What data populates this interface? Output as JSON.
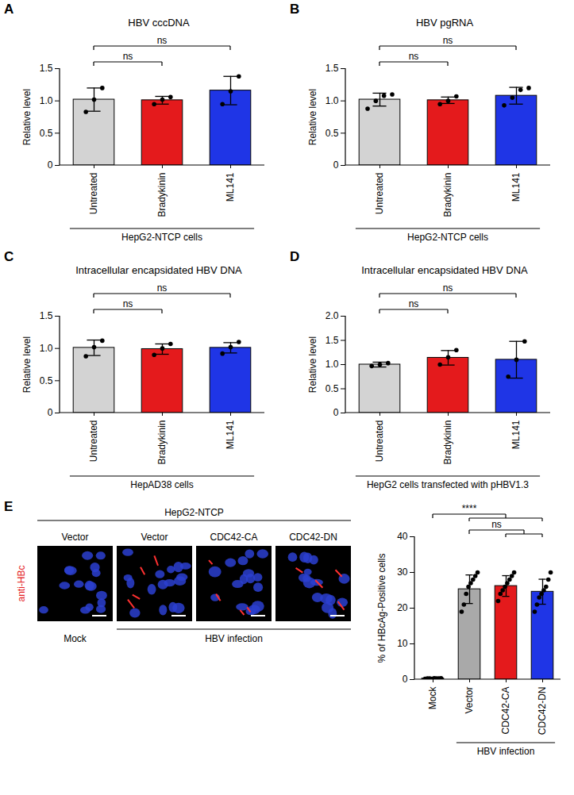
{
  "chart_data": [
    {
      "type": "bar",
      "panel": "A",
      "title": "HBV cccDNA",
      "y_label": "Relative level",
      "categories": [
        "Untreated",
        "Bradykinin",
        "ML141"
      ],
      "values": [
        1.02,
        1.01,
        1.16
      ],
      "errors": [
        0.18,
        0.06,
        0.22
      ],
      "points": [
        [
          0.83,
          1.02,
          1.2
        ],
        [
          0.95,
          1.02,
          1.06
        ],
        [
          0.95,
          1.15,
          1.38
        ]
      ],
      "colors": [
        "#d3d3d3",
        "#e41a1c",
        "#1f35e6"
      ],
      "ylim": [
        0,
        1.5
      ],
      "yticks": [
        0,
        0.5,
        {
          "value": 1,
          "label": "1.0"
        },
        1.5
      ],
      "group_label": "HepG2-NTCP cells",
      "significance": [
        {
          "from": "Untreated",
          "to": "Bradykinin",
          "label": "ns"
        },
        {
          "from": "Untreated",
          "to": "ML141",
          "label": "ns"
        }
      ]
    },
    {
      "type": "bar",
      "panel": "B",
      "title": "HBV pgRNA",
      "y_label": "Relative level",
      "categories": [
        "Untreated",
        "Bradykinin",
        "ML141"
      ],
      "values": [
        1.02,
        1.01,
        1.08
      ],
      "errors": [
        0.1,
        0.05,
        0.13
      ],
      "points": [
        [
          0.88,
          1.0,
          1.08,
          1.1
        ],
        [
          0.95,
          1.0,
          1.07
        ],
        [
          0.93,
          1.05,
          1.17,
          1.2
        ]
      ],
      "colors": [
        "#d3d3d3",
        "#e41a1c",
        "#1f35e6"
      ],
      "ylim": [
        0,
        1.5
      ],
      "yticks": [
        0,
        0.5,
        {
          "value": 1,
          "label": "1.0"
        },
        1.5
      ],
      "group_label": "HepG2-NTCP cells",
      "significance": [
        {
          "from": "Untreated",
          "to": "Bradykinin",
          "label": "ns"
        },
        {
          "from": "Untreated",
          "to": "ML141",
          "label": "ns"
        }
      ]
    },
    {
      "type": "bar",
      "panel": "C",
      "title": "Intracellular encapsidated HBV DNA",
      "y_label": "Relative level",
      "categories": [
        "Untreated",
        "Bradykinin",
        "ML141"
      ],
      "values": [
        1.01,
        0.99,
        1.01
      ],
      "errors": [
        0.12,
        0.08,
        0.08
      ],
      "points": [
        [
          0.88,
          1.02,
          1.12
        ],
        [
          0.9,
          1.0,
          1.07
        ],
        [
          0.92,
          1.02,
          1.1
        ]
      ],
      "colors": [
        "#d3d3d3",
        "#e41a1c",
        "#1f35e6"
      ],
      "ylim": [
        0,
        1.5
      ],
      "yticks": [
        0,
        0.5,
        {
          "value": 1,
          "label": "1.0"
        },
        1.5
      ],
      "group_label": "HepAD38 cells",
      "significance": [
        {
          "from": "Untreated",
          "to": "Bradykinin",
          "label": "ns"
        },
        {
          "from": "Untreated",
          "to": "ML141",
          "label": "ns"
        }
      ]
    },
    {
      "type": "bar",
      "panel": "D",
      "title": "Intracellular encapsidated HBV DNA",
      "y_label": "Relative level",
      "categories": [
        "Untreated",
        "Bradykinin",
        "ML141"
      ],
      "values": [
        1.0,
        1.14,
        1.1
      ],
      "errors": [
        0.05,
        0.15,
        0.38
      ],
      "points": [
        [
          0.97,
          1.0,
          1.03
        ],
        [
          1.0,
          1.15,
          1.3
        ],
        [
          0.75,
          1.1,
          1.48
        ]
      ],
      "colors": [
        "#d3d3d3",
        "#e41a1c",
        "#1f35e6"
      ],
      "ylim": [
        0,
        2
      ],
      "yticks": [
        0,
        0.5,
        {
          "value": 1,
          "label": "1.0"
        },
        1.5,
        {
          "value": 2,
          "label": "2.0"
        }
      ],
      "group_label": "HepG2 cells transfected with pHBV1.3",
      "significance": [
        {
          "from": "Untreated",
          "to": "Bradykinin",
          "label": "ns"
        },
        {
          "from": "Untreated",
          "to": "ML141",
          "label": "ns"
        }
      ]
    },
    {
      "type": "bar",
      "y_label": "% of HBcAg-Positive cells",
      "categories": [
        "Mock",
        "Vector",
        "CDC42-CA",
        "CDC42-DN"
      ],
      "values": [
        0.3,
        25.3,
        26.2,
        24.6
      ],
      "errors": [
        0.2,
        4.0,
        2.9,
        3.5
      ],
      "points": [
        [
          0.2,
          0.3,
          0.3,
          0.2,
          0.4,
          0.3,
          0.3,
          0.4
        ],
        [
          19,
          21,
          24,
          26,
          27,
          28,
          29,
          30
        ],
        [
          22,
          24,
          25,
          26,
          27,
          28,
          29,
          30
        ],
        [
          19,
          21,
          23,
          24,
          25,
          26,
          28,
          30
        ]
      ],
      "colors": [
        "#d3d3d3",
        "#a9a9a9",
        "#e41a1c",
        "#1f35e6"
      ],
      "ylim": [
        0,
        40
      ],
      "yticks": [
        0,
        10,
        20,
        30,
        40
      ],
      "group_label": "HBV infection",
      "group_categories": [
        "Vector",
        "CDC42-CA",
        "CDC42-DN"
      ],
      "significance": [
        {
          "from": "Vector",
          "to": [
            "CDC42-CA",
            "CDC42-DN"
          ],
          "label": "ns"
        },
        {
          "from": "Mock",
          "to": [
            "Vector",
            "CDC42-CA",
            "CDC42-DN"
          ],
          "label": "****"
        }
      ]
    }
  ],
  "micrographs": {
    "panel": "E",
    "header": "HepG2-NTCP",
    "stain": "anti-HBc",
    "images": [
      "Vector",
      "Vector",
      "CDC42-CA",
      "CDC42-DN"
    ],
    "conditions": [
      {
        "label": "Mock",
        "images": [
          0
        ]
      },
      {
        "label": "HBV infection",
        "images": [
          1,
          2,
          3
        ]
      }
    ]
  }
}
